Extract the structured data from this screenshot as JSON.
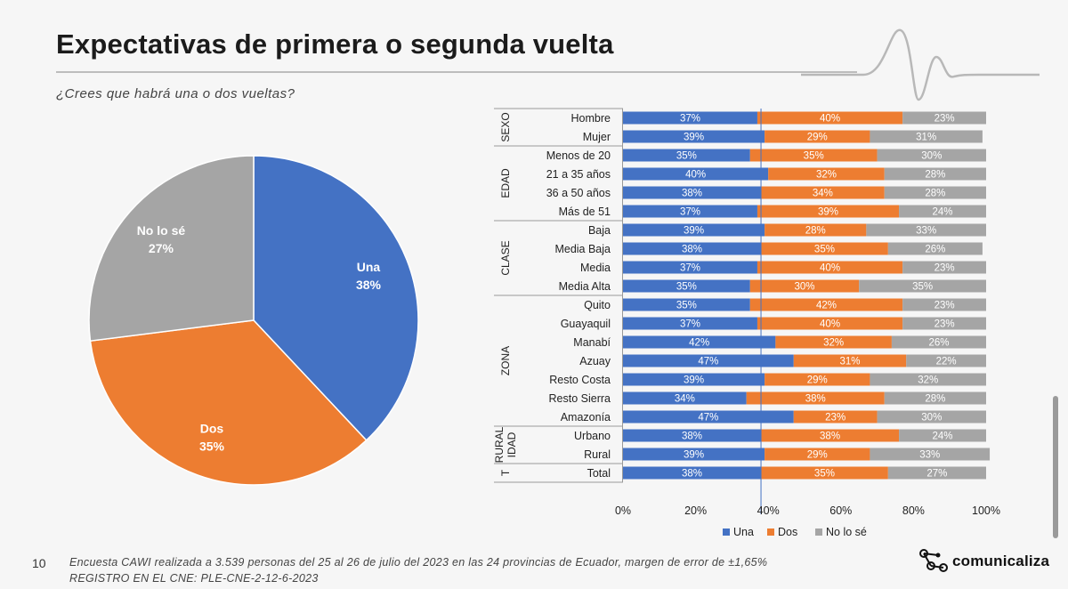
{
  "header": {
    "title": "Expectativas de primera o segunda vuelta",
    "question": "¿Crees que habrá una o dos vueltas?"
  },
  "footer": {
    "page_number": "10",
    "line1": "Encuesta CAWI realizada a 3.539 personas del 25 al 26 de julio del 2023 en las 24 provincias de Ecuador, margen de error de  ±1,65%",
    "line2": "REGISTRO EN EL CNE: PLE-CNE-2-12-6-2023"
  },
  "brand": {
    "name": "comunicaliza",
    "icon": "network-nodes-icon"
  },
  "colors": {
    "una": "#4472c4",
    "dos": "#ed7d31",
    "nolose": "#a5a5a5"
  },
  "chart_data": [
    {
      "type": "pie",
      "slices": [
        {
          "label": "Una",
          "value": 38,
          "display": "38%",
          "color": "#4472c4"
        },
        {
          "label": "Dos",
          "value": 35,
          "display": "35%",
          "color": "#ed7d31"
        },
        {
          "label": "No lo sé",
          "value": 27,
          "display": "27%",
          "color": "#a5a5a5"
        }
      ]
    },
    {
      "type": "bar",
      "orientation": "horizontal",
      "stacked": "100%",
      "xlim": [
        0,
        100
      ],
      "x_ticks": [
        "0%",
        "20%",
        "40%",
        "60%",
        "80%",
        "100%"
      ],
      "legend": [
        "Una",
        "Dos",
        "No lo sé"
      ],
      "legend_position": "bottom",
      "groups": [
        {
          "name": "SEXO",
          "rows": [
            {
              "label": "Hombre",
              "values": [
                37,
                40,
                23
              ]
            },
            {
              "label": "Mujer",
              "values": [
                39,
                29,
                31
              ]
            }
          ]
        },
        {
          "name": "EDAD",
          "rows": [
            {
              "label": "Menos de 20",
              "values": [
                35,
                35,
                30
              ]
            },
            {
              "label": "21 a 35 años",
              "values": [
                40,
                32,
                28
              ]
            },
            {
              "label": "36 a 50 años",
              "values": [
                38,
                34,
                28
              ]
            },
            {
              "label": "Más de 51",
              "values": [
                37,
                39,
                24
              ]
            }
          ]
        },
        {
          "name": "CLASE",
          "rows": [
            {
              "label": "Baja",
              "values": [
                39,
                28,
                33
              ]
            },
            {
              "label": "Media Baja",
              "values": [
                38,
                35,
                26
              ]
            },
            {
              "label": "Media",
              "values": [
                37,
                40,
                23
              ]
            },
            {
              "label": "Media Alta",
              "values": [
                35,
                30,
                35
              ]
            }
          ]
        },
        {
          "name": "ZONA",
          "rows": [
            {
              "label": "Quito",
              "values": [
                35,
                42,
                23
              ]
            },
            {
              "label": "Guayaquil",
              "values": [
                37,
                40,
                23
              ]
            },
            {
              "label": "Manabí",
              "values": [
                42,
                32,
                26
              ]
            },
            {
              "label": "Azuay",
              "values": [
                47,
                31,
                22
              ]
            },
            {
              "label": "Resto Costa",
              "values": [
                39,
                29,
                32
              ]
            },
            {
              "label": "Resto Sierra",
              "values": [
                34,
                38,
                28
              ]
            },
            {
              "label": "Amazonía",
              "values": [
                47,
                23,
                30
              ]
            }
          ]
        },
        {
          "name": "RURAL IDAD",
          "rows": [
            {
              "label": "Urbano",
              "values": [
                38,
                38,
                24
              ]
            },
            {
              "label": "Rural",
              "values": [
                39,
                29,
                33
              ]
            }
          ]
        },
        {
          "name": "T",
          "rows": [
            {
              "label": "Total",
              "values": [
                38,
                35,
                27
              ]
            }
          ]
        }
      ],
      "reference_line": 38
    }
  ]
}
